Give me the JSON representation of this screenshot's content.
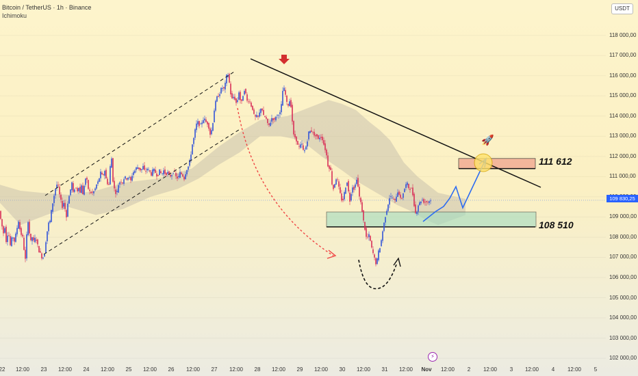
{
  "header": {
    "symbol_title": "Bitcoin / TetherUS · 1h · Binance",
    "indicator": "Ichimoku",
    "currency": "USDT"
  },
  "price_axis": {
    "labels": [
      "118 000,00",
      "117 000,00",
      "116 000,00",
      "115 000,00",
      "114 000,00",
      "113 000,00",
      "112 000,00",
      "111 000,00",
      "110 000,00",
      "109 000,00",
      "108 000,00",
      "107 000,00",
      "106 000,00",
      "105 000,00",
      "104 000,00",
      "103 000,00",
      "102 000,00"
    ],
    "current_price": "109 830,25"
  },
  "time_axis": {
    "labels": [
      {
        "t": "22",
        "c": 3
      },
      {
        "t": "12:00",
        "c": 33
      },
      {
        "t": "23",
        "c": 64
      },
      {
        "t": "12:00",
        "c": 95
      },
      {
        "t": "24",
        "c": 126
      },
      {
        "t": "12:00",
        "c": 157
      },
      {
        "t": "25",
        "c": 188
      },
      {
        "t": "12:00",
        "c": 219
      },
      {
        "t": "26",
        "c": 250
      },
      {
        "t": "12:00",
        "c": 282
      },
      {
        "t": "27",
        "c": 313
      },
      {
        "t": "12:00",
        "c": 345
      },
      {
        "t": "28",
        "c": 376
      },
      {
        "t": "12:00",
        "c": 407
      },
      {
        "t": "29",
        "c": 438
      },
      {
        "t": "12:00",
        "c": 469
      },
      {
        "t": "30",
        "c": 500
      },
      {
        "t": "12:00",
        "c": 531
      },
      {
        "t": "31",
        "c": 562
      },
      {
        "t": "12:00",
        "c": 593
      },
      {
        "t": "Nov",
        "c": 623,
        "b": true
      },
      {
        "t": "12:00",
        "c": 654
      },
      {
        "t": "2",
        "c": 685
      },
      {
        "t": "12:00",
        "c": 716
      },
      {
        "t": "3",
        "c": 747
      },
      {
        "t": "12:00",
        "c": 777
      },
      {
        "t": "4",
        "c": 808
      },
      {
        "t": "12:00",
        "c": 839
      },
      {
        "t": "5",
        "c": 870
      }
    ]
  },
  "annotations": {
    "resistance_level": "111 612",
    "support_level": "108 510"
  },
  "colors": {
    "up": "#3153d8",
    "down": "#d82e57",
    "resistance_zone": "#f2a891",
    "support_zone": "#a3dcc1",
    "trendline": "#111111",
    "projection": "#2b6bf2",
    "curve": "#ef4444",
    "cloud": "#b9b2a6"
  },
  "chart_data": {
    "type": "candlestick",
    "y_range": [
      101800,
      118600
    ],
    "price_scale": "linear",
    "resistance_zone": [
      111400,
      111900
    ],
    "support_zone": [
      108510,
      109250
    ],
    "current_price": 109830.25,
    "trendline": [
      [
        "Oct 28 ~08:00",
        116300
      ],
      [
        "Nov 3 ~12:00",
        110500
      ]
    ],
    "price_path": [
      [
        0,
        109300
      ],
      [
        3,
        108700
      ],
      [
        6,
        108200
      ],
      [
        8,
        108500
      ],
      [
        10,
        107800
      ],
      [
        13,
        108300
      ],
      [
        16,
        107600
      ],
      [
        19,
        108100
      ],
      [
        22,
        107800
      ],
      [
        25,
        108300
      ],
      [
        28,
        108800
      ],
      [
        31,
        108200
      ],
      [
        34,
        108000
      ],
      [
        36,
        107400
      ],
      [
        38,
        106900
      ],
      [
        40,
        108100
      ],
      [
        42,
        108800
      ],
      [
        44,
        108200
      ],
      [
        46,
        107800
      ],
      [
        48,
        108000
      ],
      [
        50,
        107800
      ],
      [
        53,
        108000
      ],
      [
        56,
        107600
      ],
      [
        58,
        107300
      ],
      [
        60,
        107200
      ],
      [
        63,
        106900
      ],
      [
        66,
        107200
      ],
      [
        69,
        108100
      ],
      [
        72,
        108700
      ],
      [
        74,
        108800
      ],
      [
        76,
        109300
      ],
      [
        79,
        109900
      ],
      [
        82,
        110400
      ],
      [
        85,
        110700
      ],
      [
        88,
        110100
      ],
      [
        90,
        109800
      ],
      [
        92,
        109500
      ],
      [
        94,
        109700
      ],
      [
        96,
        109400
      ],
      [
        98,
        109000
      ],
      [
        100,
        109700
      ],
      [
        103,
        110200
      ],
      [
        106,
        110700
      ],
      [
        108,
        110200
      ],
      [
        111,
        110500
      ],
      [
        114,
        110300
      ],
      [
        116,
        110500
      ],
      [
        118,
        110200
      ],
      [
        120,
        110600
      ],
      [
        122,
        110100
      ],
      [
        125,
        110800
      ],
      [
        127,
        111000
      ],
      [
        130,
        110400
      ],
      [
        133,
        110200
      ],
      [
        136,
        110200
      ],
      [
        139,
        110300
      ],
      [
        142,
        110600
      ],
      [
        145,
        110800
      ],
      [
        148,
        111200
      ],
      [
        151,
        111000
      ],
      [
        154,
        111300
      ],
      [
        157,
        110700
      ],
      [
        160,
        110600
      ],
      [
        162,
        111500
      ],
      [
        164,
        111900
      ],
      [
        166,
        110800
      ],
      [
        168,
        110400
      ],
      [
        171,
        110100
      ],
      [
        174,
        110600
      ],
      [
        177,
        110800
      ],
      [
        180,
        110700
      ],
      [
        183,
        111000
      ],
      [
        186,
        110900
      ],
      [
        189,
        111000
      ],
      [
        192,
        110800
      ],
      [
        195,
        111200
      ],
      [
        198,
        111300
      ],
      [
        201,
        111500
      ],
      [
        204,
        111400
      ],
      [
        207,
        111300
      ],
      [
        210,
        111500
      ],
      [
        213,
        111200
      ],
      [
        216,
        111400
      ],
      [
        219,
        111300
      ],
      [
        222,
        111100
      ],
      [
        225,
        111400
      ],
      [
        228,
        111200
      ],
      [
        231,
        111000
      ],
      [
        234,
        111300
      ],
      [
        237,
        111100
      ],
      [
        240,
        111300
      ],
      [
        243,
        111100
      ],
      [
        246,
        111200
      ],
      [
        249,
        111000
      ],
      [
        252,
        111100
      ],
      [
        255,
        111300
      ],
      [
        258,
        111000
      ],
      [
        261,
        110900
      ],
      [
        264,
        111200
      ],
      [
        267,
        111100
      ],
      [
        270,
        110900
      ],
      [
        273,
        111300
      ],
      [
        276,
        111500
      ],
      [
        279,
        111900
      ],
      [
        282,
        112600
      ],
      [
        284,
        112900
      ],
      [
        286,
        113300
      ],
      [
        288,
        113600
      ],
      [
        290,
        113700
      ],
      [
        293,
        113500
      ],
      [
        296,
        113700
      ],
      [
        299,
        113900
      ],
      [
        302,
        113700
      ],
      [
        305,
        113600
      ],
      [
        308,
        113100
      ],
      [
        311,
        113400
      ],
      [
        314,
        114300
      ],
      [
        317,
        114900
      ],
      [
        320,
        115000
      ],
      [
        323,
        115200
      ],
      [
        325,
        115500
      ],
      [
        327,
        115300
      ],
      [
        329,
        115400
      ],
      [
        331,
        115800
      ],
      [
        333,
        116200
      ],
      [
        335,
        115900
      ],
      [
        337,
        115400
      ],
      [
        339,
        114800
      ],
      [
        341,
        114900
      ],
      [
        343,
        115000
      ],
      [
        345,
        114700
      ],
      [
        347,
        114600
      ],
      [
        350,
        115200
      ],
      [
        352,
        114800
      ],
      [
        354,
        114700
      ],
      [
        357,
        115200
      ],
      [
        359,
        115400
      ],
      [
        361,
        114800
      ],
      [
        363,
        114700
      ],
      [
        365,
        114800
      ],
      [
        367,
        114600
      ],
      [
        369,
        114400
      ],
      [
        371,
        114300
      ],
      [
        373,
        113800
      ],
      [
        375,
        114100
      ],
      [
        377,
        113900
      ],
      [
        379,
        114000
      ],
      [
        381,
        114300
      ],
      [
        383,
        114500
      ],
      [
        385,
        114100
      ],
      [
        387,
        113900
      ],
      [
        389,
        114000
      ],
      [
        391,
        113700
      ],
      [
        393,
        113500
      ],
      [
        395,
        113600
      ],
      [
        397,
        113800
      ],
      [
        399,
        114000
      ],
      [
        401,
        113700
      ],
      [
        403,
        113900
      ],
      [
        405,
        114100
      ],
      [
        407,
        114000
      ],
      [
        409,
        114200
      ],
      [
        411,
        114100
      ],
      [
        413,
        115000
      ],
      [
        415,
        115500
      ],
      [
        417,
        115200
      ],
      [
        419,
        114900
      ],
      [
        421,
        114400
      ],
      [
        423,
        114700
      ],
      [
        425,
        114800
      ],
      [
        427,
        114200
      ],
      [
        429,
        113300
      ],
      [
        431,
        112800
      ],
      [
        433,
        113100
      ],
      [
        435,
        112500
      ],
      [
        437,
        112600
      ],
      [
        439,
        112300
      ],
      [
        441,
        112800
      ],
      [
        443,
        112400
      ],
      [
        445,
        112200
      ],
      [
        447,
        112400
      ],
      [
        449,
        112600
      ],
      [
        451,
        113000
      ],
      [
        453,
        113400
      ],
      [
        455,
        113100
      ],
      [
        457,
        113400
      ],
      [
        459,
        113100
      ],
      [
        461,
        112900
      ],
      [
        463,
        113200
      ],
      [
        465,
        112800
      ],
      [
        467,
        112900
      ],
      [
        469,
        113000
      ],
      [
        471,
        112900
      ],
      [
        473,
        112800
      ],
      [
        475,
        112400
      ],
      [
        477,
        112300
      ],
      [
        479,
        111800
      ],
      [
        481,
        111300
      ],
      [
        483,
        111600
      ],
      [
        485,
        111000
      ],
      [
        487,
        110300
      ],
      [
        489,
        110500
      ],
      [
        491,
        110800
      ],
      [
        493,
        111000
      ],
      [
        495,
        110600
      ],
      [
        497,
        110300
      ],
      [
        499,
        110000
      ],
      [
        501,
        109700
      ],
      [
        503,
        110000
      ],
      [
        505,
        110400
      ],
      [
        507,
        110600
      ],
      [
        509,
        110900
      ],
      [
        511,
        109600
      ],
      [
        513,
        110000
      ],
      [
        515,
        110400
      ],
      [
        517,
        110600
      ],
      [
        519,
        110200
      ],
      [
        521,
        111000
      ],
      [
        523,
        110800
      ],
      [
        525,
        110200
      ],
      [
        527,
        109800
      ],
      [
        529,
        109600
      ],
      [
        531,
        109000
      ],
      [
        533,
        108600
      ],
      [
        535,
        108200
      ],
      [
        537,
        107800
      ],
      [
        539,
        108200
      ],
      [
        541,
        108000
      ],
      [
        543,
        107600
      ],
      [
        545,
        107300
      ],
      [
        547,
        107100
      ],
      [
        549,
        106800
      ],
      [
        551,
        106600
      ],
      [
        553,
        107200
      ],
      [
        555,
        107400
      ],
      [
        557,
        107600
      ],
      [
        559,
        108100
      ],
      [
        561,
        108500
      ],
      [
        563,
        108900
      ],
      [
        565,
        109200
      ],
      [
        567,
        109500
      ],
      [
        569,
        109800
      ],
      [
        571,
        110100
      ],
      [
        573,
        109900
      ],
      [
        575,
        110000
      ],
      [
        577,
        109700
      ],
      [
        579,
        109900
      ],
      [
        581,
        110200
      ],
      [
        583,
        110300
      ],
      [
        585,
        110000
      ],
      [
        587,
        109800
      ],
      [
        589,
        110100
      ],
      [
        591,
        110300
      ],
      [
        593,
        110500
      ],
      [
        595,
        110700
      ],
      [
        597,
        110600
      ],
      [
        599,
        110300
      ],
      [
        601,
        110500
      ],
      [
        603,
        110300
      ],
      [
        605,
        109900
      ],
      [
        607,
        109300
      ],
      [
        609,
        109100
      ],
      [
        611,
        109500
      ],
      [
        613,
        109700
      ],
      [
        615,
        109700
      ],
      [
        617,
        109900
      ],
      [
        619,
        109800
      ],
      [
        621,
        109700
      ],
      [
        623,
        109800
      ],
      [
        625,
        109700
      ],
      [
        627,
        109800
      ],
      [
        629,
        109800
      ],
      [
        631,
        109830
      ]
    ]
  }
}
